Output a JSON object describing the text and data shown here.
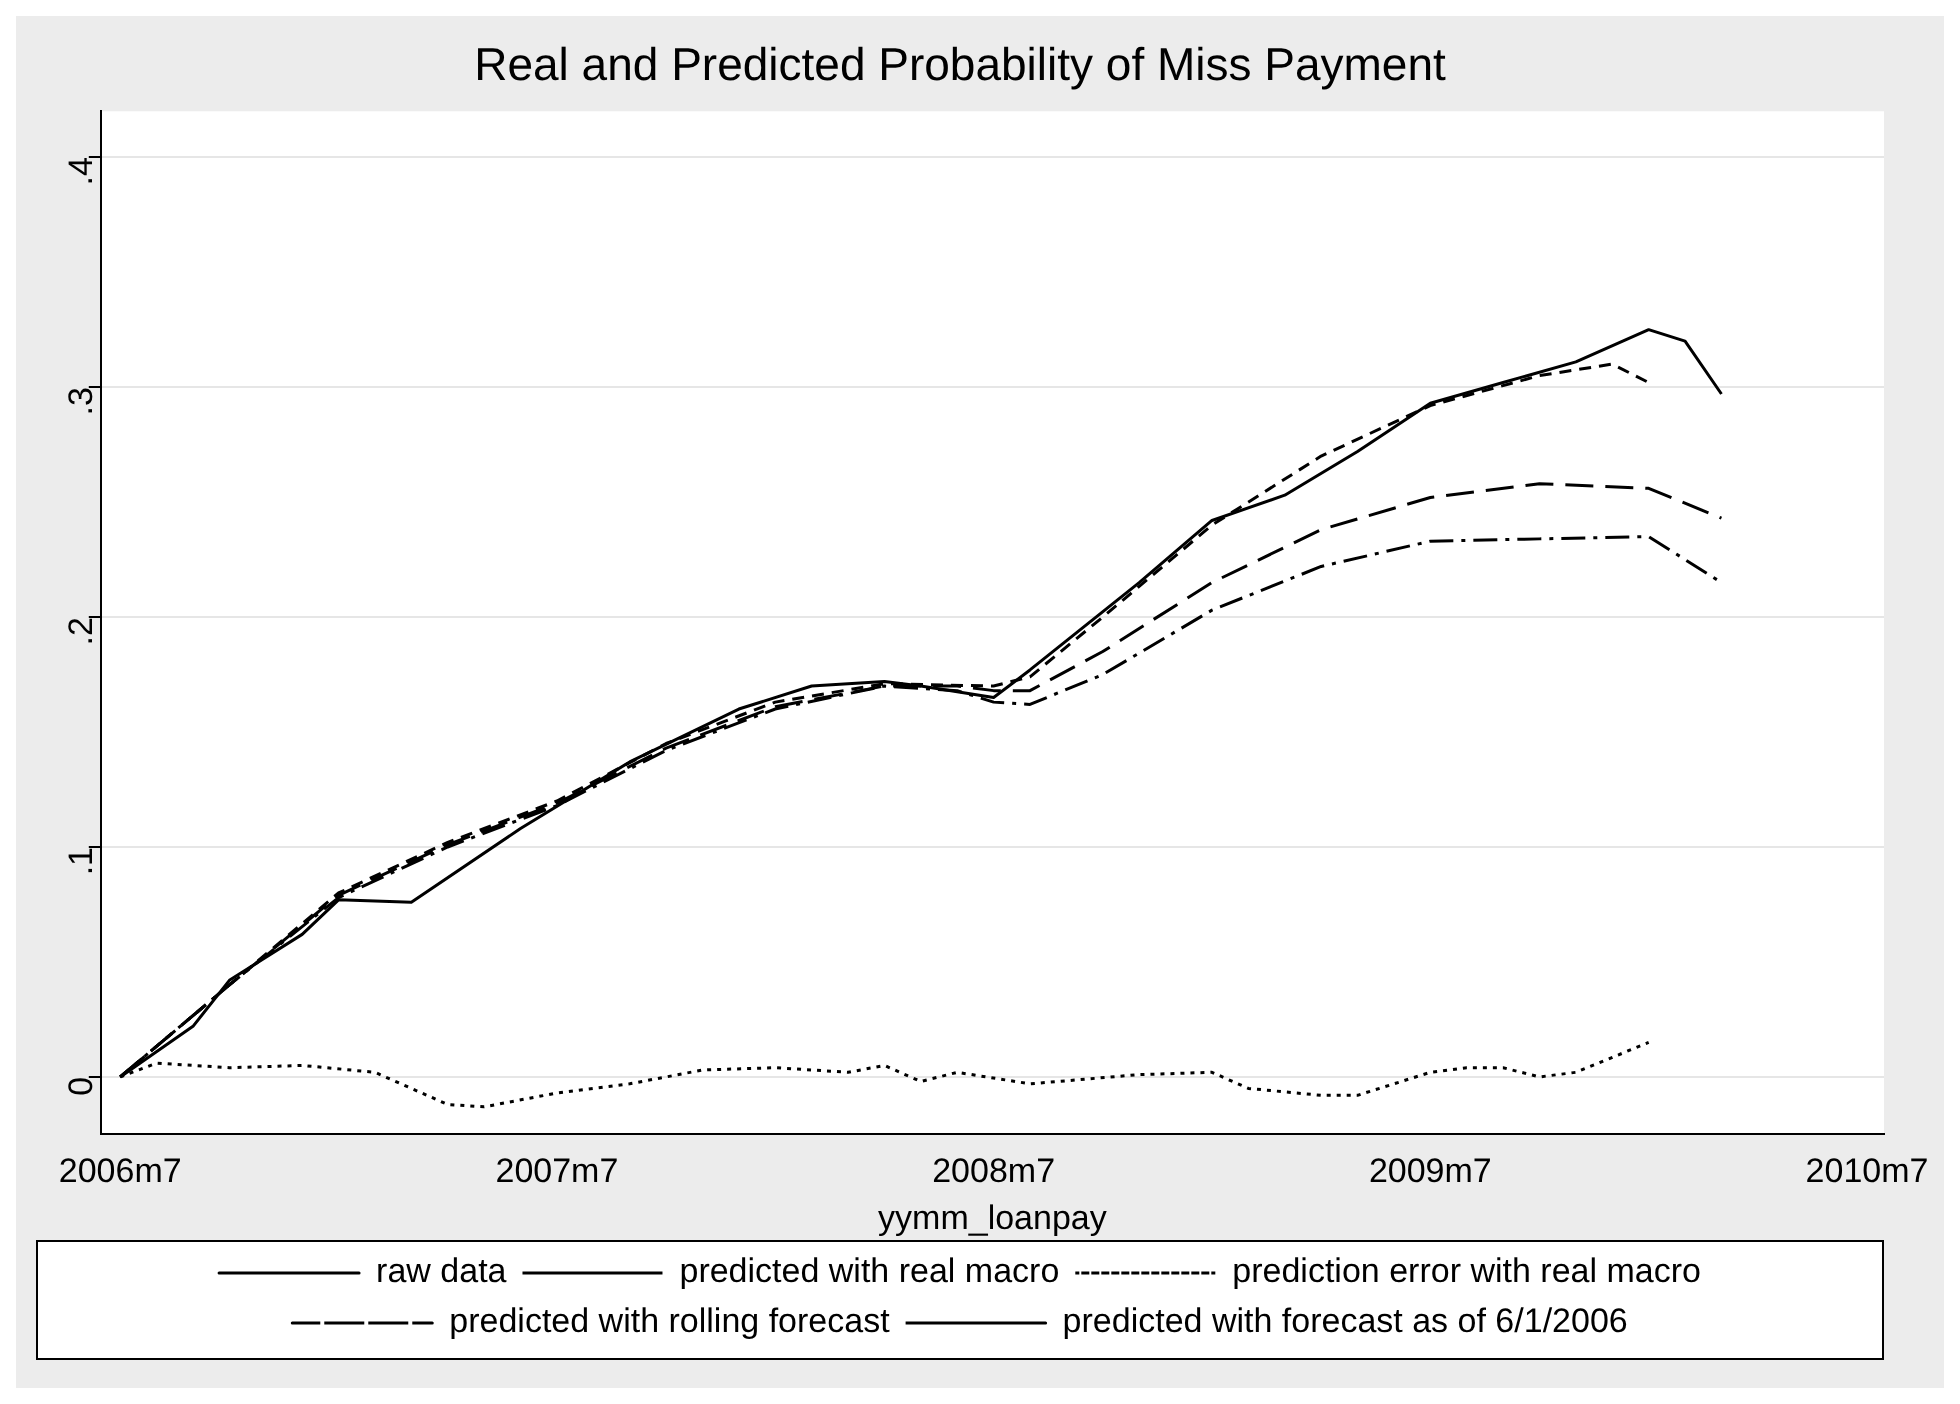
{
  "chart_data": {
    "type": "line",
    "title": "Real and Predicted Probability of Miss Payment",
    "xlabel": "yymm_loanpay",
    "xlim": [
      "2006-06-15",
      "2010-07-15"
    ],
    "xticks": [
      {
        "value": "2006-07",
        "label": "2006m7"
      },
      {
        "value": "2007-07",
        "label": "2007m7"
      },
      {
        "value": "2008-07",
        "label": "2008m7"
      },
      {
        "value": "2009-07",
        "label": "2009m7"
      },
      {
        "value": "2010-07",
        "label": "2010m7"
      }
    ],
    "ylim": [
      -0.025,
      0.42
    ],
    "yticks": [
      {
        "value": 0,
        "label": "0"
      },
      {
        "value": 0.1,
        "label": ".1"
      },
      {
        "value": 0.2,
        "label": ".2"
      },
      {
        "value": 0.3,
        "label": ".3"
      },
      {
        "value": 0.4,
        "label": ".4"
      }
    ],
    "grid": "y",
    "legend": "bottom",
    "marker": "none",
    "series": [
      {
        "name": "raw data",
        "color": "#000000",
        "line_style": "solid",
        "x": [
          "2006-07",
          "2006-09",
          "2006-10",
          "2006-12",
          "2007-01",
          "2007-03",
          "2007-06",
          "2007-09",
          "2007-12",
          "2008-02",
          "2008-04",
          "2008-05",
          "2008-07",
          "2008-08",
          "2008-11",
          "2009-01",
          "2009-03",
          "2009-05",
          "2009-07",
          "2009-09",
          "2009-11",
          "2010-01",
          "2010-02",
          "2010-03"
        ],
        "values": [
          0,
          0.022,
          0.042,
          0.062,
          0.077,
          0.076,
          0.108,
          0.137,
          0.16,
          0.17,
          0.172,
          0.17,
          0.165,
          0.177,
          0.215,
          0.242,
          0.253,
          0.272,
          0.293,
          0.302,
          0.311,
          0.325,
          0.32,
          0.297
        ]
      },
      {
        "name": "predicted with real macro",
        "color": "#000000",
        "line_style": "dashed",
        "x": [
          "2006-07",
          "2006-10",
          "2007-01",
          "2007-04",
          "2007-07",
          "2007-10",
          "2008-01",
          "2008-04",
          "2008-07",
          "2008-08",
          "2008-10",
          "2009-01",
          "2009-04",
          "2009-07",
          "2009-10",
          "2009-12",
          "2010-01"
        ],
        "values": [
          0,
          0.04,
          0.08,
          0.102,
          0.12,
          0.145,
          0.163,
          0.171,
          0.17,
          0.174,
          0.2,
          0.24,
          0.27,
          0.292,
          0.305,
          0.31,
          0.302
        ]
      },
      {
        "name": "prediction error with real macro",
        "color": "#000000",
        "line_style": "dotted",
        "x": [
          "2006-07",
          "2006-08",
          "2006-10",
          "2006-12",
          "2007-02",
          "2007-04",
          "2007-05",
          "2007-07",
          "2007-09",
          "2007-11",
          "2008-01",
          "2008-03",
          "2008-04",
          "2008-05",
          "2008-06",
          "2008-08",
          "2008-11",
          "2009-01",
          "2009-02",
          "2009-04",
          "2009-05",
          "2009-07",
          "2009-08",
          "2009-09",
          "2009-10",
          "2009-11",
          "2010-01"
        ],
        "values": [
          0,
          0.006,
          0.004,
          0.005,
          0.002,
          -0.012,
          -0.013,
          -0.007,
          -0.003,
          0.003,
          0.004,
          0.002,
          0.005,
          -0.002,
          0.002,
          -0.003,
          0.001,
          0.002,
          -0.005,
          -0.008,
          -0.008,
          0.002,
          0.004,
          0.004,
          0,
          0.002,
          0.015
        ]
      },
      {
        "name": "predicted with rolling forecast",
        "color": "#000000",
        "line_style": "dashdot",
        "x": [
          "2006-07",
          "2006-10",
          "2007-01",
          "2007-04",
          "2007-07",
          "2007-10",
          "2008-01",
          "2008-04",
          "2008-06",
          "2008-07",
          "2008-08",
          "2008-10",
          "2009-01",
          "2009-04",
          "2009-07",
          "2009-10",
          "2010-01",
          "2010-03"
        ],
        "values": [
          0,
          0.04,
          0.078,
          0.1,
          0.118,
          0.142,
          0.16,
          0.17,
          0.168,
          0.163,
          0.162,
          0.175,
          0.203,
          0.222,
          0.233,
          0.234,
          0.235,
          0.215
        ]
      },
      {
        "name": "predicted with forecast as of 6/1/2006",
        "color": "#000000",
        "line_style": "longdash",
        "x": [
          "2006-07",
          "2006-10",
          "2007-01",
          "2007-04",
          "2007-07",
          "2007-10",
          "2008-01",
          "2008-04",
          "2008-06",
          "2008-07",
          "2008-08",
          "2008-10",
          "2009-01",
          "2009-04",
          "2009-07",
          "2009-10",
          "2010-01",
          "2010-03"
        ],
        "values": [
          0,
          0.04,
          0.079,
          0.101,
          0.119,
          0.143,
          0.161,
          0.17,
          0.17,
          0.168,
          0.168,
          0.185,
          0.215,
          0.238,
          0.252,
          0.258,
          0.256,
          0.243
        ]
      }
    ]
  }
}
